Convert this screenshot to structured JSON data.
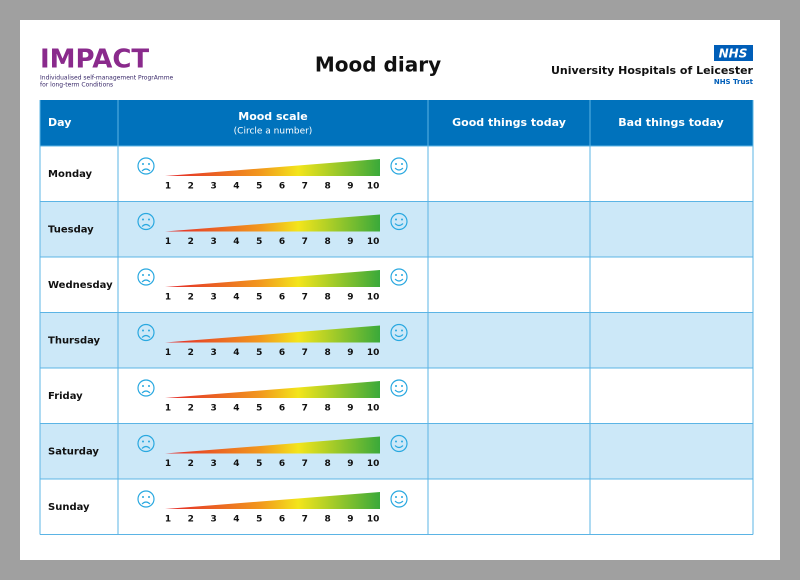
{
  "header": {
    "logo": {
      "name": "IMPACT",
      "tagline": [
        "Individualised self-management ProgrAmme",
        "for long-term Conditions"
      ]
    },
    "title": "Mood diary",
    "trust": {
      "badge": "NHS",
      "name": "University Hospitals of Leicester",
      "subname": "NHS Trust"
    }
  },
  "table": {
    "columns": [
      "Day",
      "Mood scale",
      "Good things today",
      "Bad things today"
    ],
    "mood_note": "(Circle a number)",
    "scale": [
      1,
      2,
      3,
      4,
      5,
      6,
      7,
      8,
      9,
      10
    ],
    "rows": [
      "Monday",
      "Tuesday",
      "Wednesday",
      "Thursday",
      "Friday",
      "Saturday",
      "Sunday"
    ]
  }
}
